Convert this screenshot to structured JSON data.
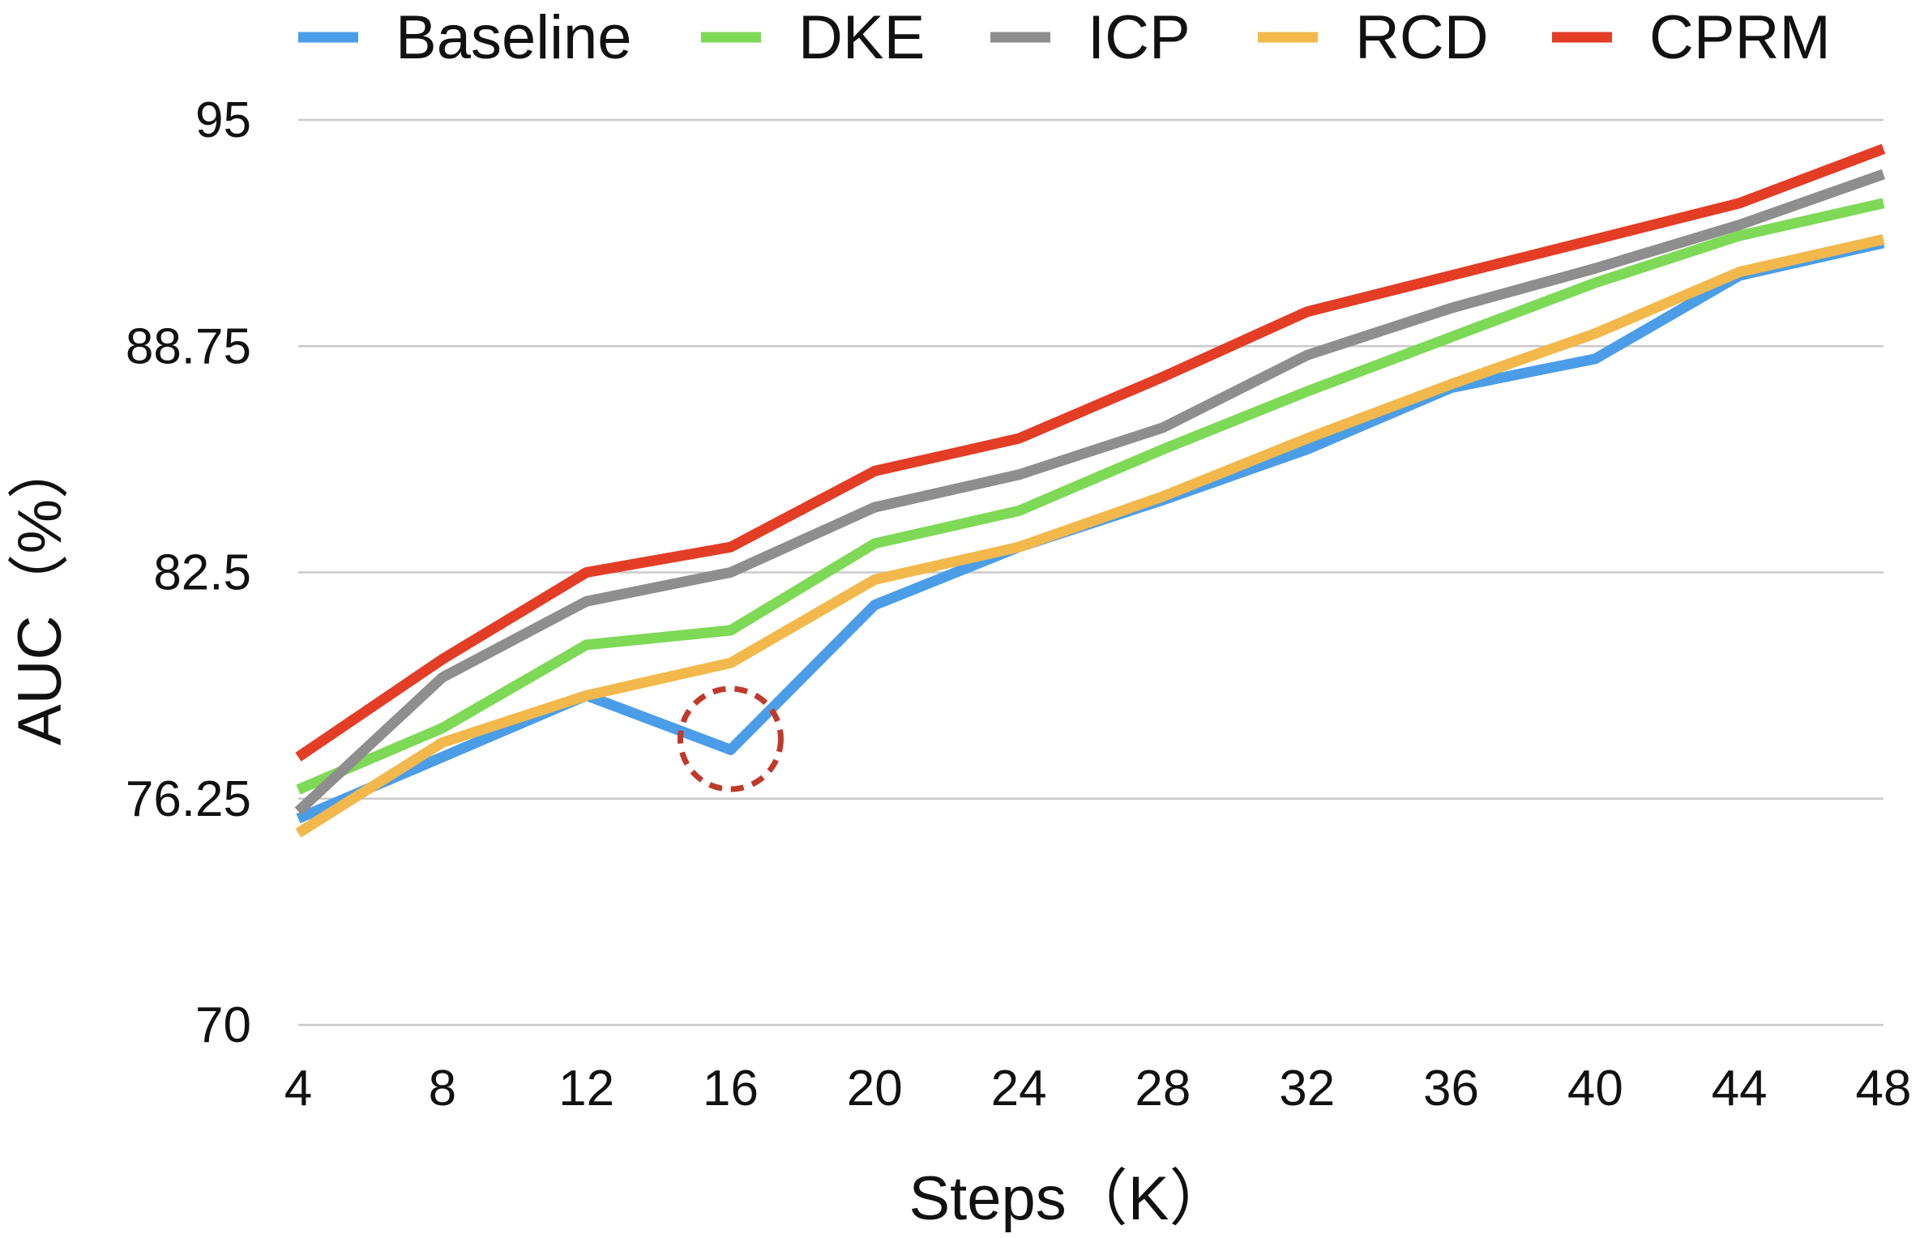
{
  "chart_data": {
    "type": "line",
    "title": "",
    "xlabel": "Steps（K）",
    "ylabel": "AUC（%）",
    "x": [
      4,
      8,
      12,
      16,
      20,
      24,
      28,
      32,
      36,
      40,
      44,
      48
    ],
    "x_tick_labels": [
      "4",
      "8",
      "12",
      "16",
      "20",
      "24",
      "28",
      "32",
      "36",
      "40",
      "44",
      "48"
    ],
    "xlim": [
      4,
      48
    ],
    "y_ticks": [
      70,
      76.25,
      82.5,
      88.75,
      95
    ],
    "y_tick_labels": [
      "70",
      "76.25",
      "82.5",
      "88.75",
      "95"
    ],
    "ylim": [
      70,
      95
    ],
    "grid": "horizontal",
    "legend_position": "top",
    "series": [
      {
        "name": "Baseline",
        "color": "#4b9de8",
        "values": [
          75.7,
          77.4,
          79.1,
          77.6,
          81.6,
          83.2,
          84.5,
          85.9,
          87.6,
          88.4,
          90.7,
          91.6
        ]
      },
      {
        "name": "DKE",
        "color": "#7ed957",
        "values": [
          76.5,
          78.2,
          80.5,
          80.9,
          83.3,
          84.2,
          85.9,
          87.5,
          89.0,
          90.5,
          91.8,
          92.7
        ]
      },
      {
        "name": "ICP",
        "color": "#8e8e8e",
        "values": [
          75.9,
          79.6,
          81.7,
          82.5,
          84.3,
          85.2,
          86.5,
          88.5,
          89.8,
          90.9,
          92.1,
          93.5
        ]
      },
      {
        "name": "RCD",
        "color": "#f2b84b",
        "values": [
          75.3,
          77.8,
          79.1,
          80.0,
          82.3,
          83.2,
          84.6,
          86.2,
          87.7,
          89.1,
          90.8,
          91.7
        ]
      },
      {
        "name": "CPRM",
        "color": "#e33d26",
        "values": [
          77.4,
          80.1,
          82.5,
          83.2,
          85.3,
          86.2,
          87.9,
          89.7,
          90.7,
          91.7,
          92.7,
          94.2
        ]
      }
    ],
    "annotations": [
      {
        "type": "dashed-circle",
        "series": "Baseline",
        "x": 16,
        "y": 77.9,
        "color": "#c0392b"
      }
    ]
  }
}
